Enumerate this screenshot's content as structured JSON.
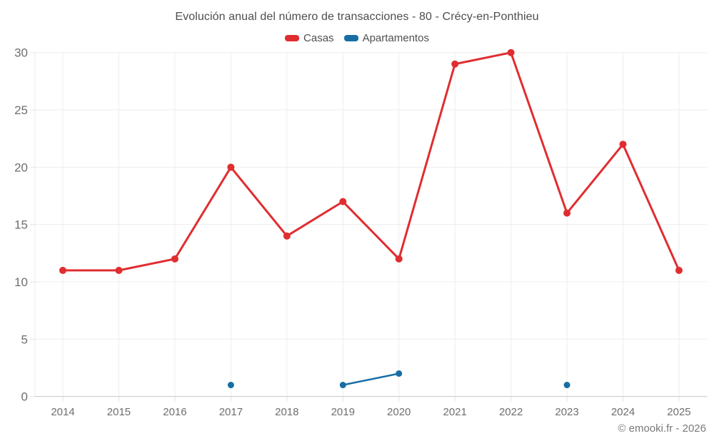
{
  "copyright": "© emooki.fr - 2026",
  "chart_data": {
    "type": "line",
    "title": "Evolución anual del número de transacciones - 80 - Crécy-en-Ponthieu",
    "categories": [
      "2014",
      "2015",
      "2016",
      "2017",
      "2018",
      "2019",
      "2020",
      "2021",
      "2022",
      "2023",
      "2024",
      "2025"
    ],
    "series": [
      {
        "name": "Casas",
        "color": "#e02d30",
        "line_width": 3,
        "marker_radius": 5,
        "values": [
          11,
          11,
          12,
          20,
          14,
          17,
          12,
          29,
          30,
          16,
          22,
          11
        ]
      },
      {
        "name": "Apartamentos",
        "color": "#176ea4",
        "line_width": 2.5,
        "marker_radius": 4.5,
        "values": [
          null,
          null,
          null,
          1,
          null,
          1,
          2,
          null,
          null,
          1,
          null,
          null
        ]
      }
    ],
    "xlabel": "",
    "ylabel": "",
    "ylim": [
      0,
      30
    ],
    "yticks": [
      0,
      5,
      10,
      15,
      20,
      25,
      30
    ],
    "grid": true,
    "legend_position": "top"
  }
}
